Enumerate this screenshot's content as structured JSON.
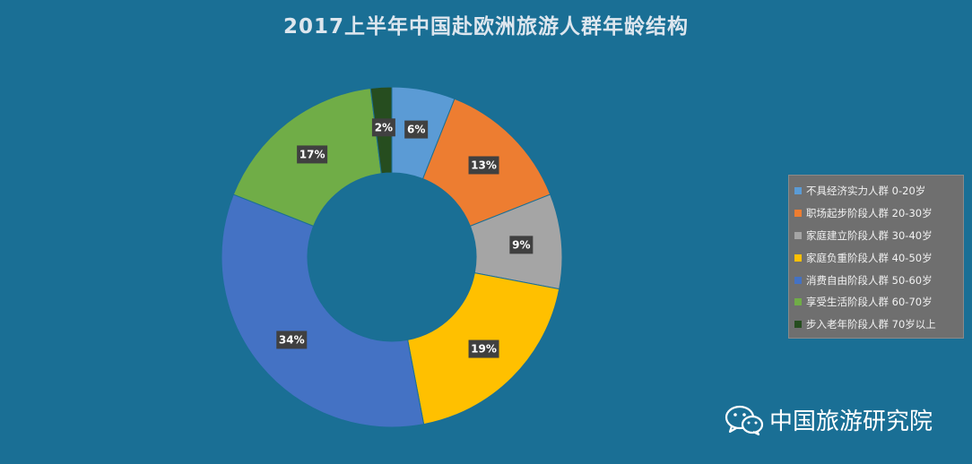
{
  "chart_data": {
    "type": "pie",
    "title": "2017上半年中国赴欧洲旅游人群年龄结构",
    "hole": "donut",
    "legend_position": "right",
    "series": [
      {
        "name": "不具经济实力人群 0-20岁",
        "value": 6,
        "label": "6%",
        "color": "#5b9bd5"
      },
      {
        "name": "职场起步阶段人群 20-30岁",
        "value": 13,
        "label": "13%",
        "color": "#ed7d31"
      },
      {
        "name": "家庭建立阶段人群 30-40岁",
        "value": 9,
        "label": "9%",
        "color": "#a5a5a5"
      },
      {
        "name": "家庭负重阶段人群 40-50岁",
        "value": 19,
        "label": "19%",
        "color": "#ffc000"
      },
      {
        "name": "消费自由阶段人群 50-60岁",
        "value": 34,
        "label": "34%",
        "color": "#4472c4"
      },
      {
        "name": "享受生活阶段人群 60-70岁",
        "value": 17,
        "label": "17%",
        "color": "#70ad47"
      },
      {
        "name": "步入老年阶段人群 70岁以上",
        "value": 2,
        "label": "2%",
        "color": "#264d1f"
      }
    ]
  },
  "watermark": {
    "text": "中国旅游研究院",
    "icon": "wechat-icon"
  },
  "colors": {
    "background": "#1a6f95",
    "label_box": "#404040",
    "legend_bg": "#6f6f6f"
  }
}
